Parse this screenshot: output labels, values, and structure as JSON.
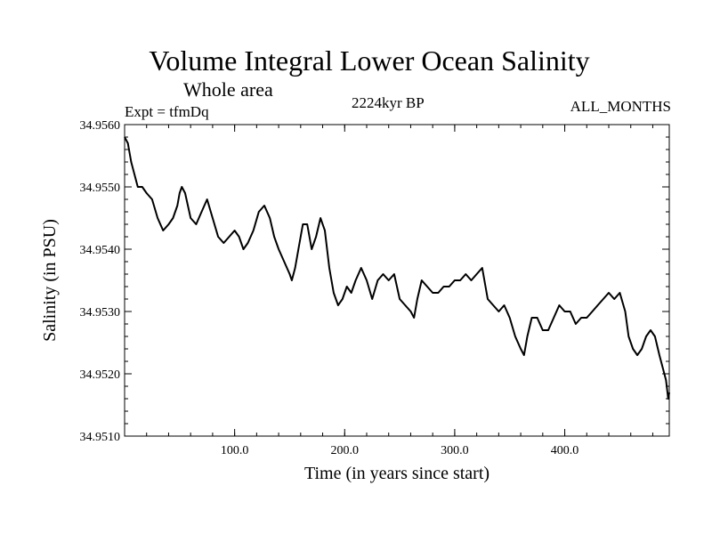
{
  "chart_data": {
    "type": "line",
    "title": "Volume Integral Lower Ocean Salinity",
    "subtitle": "Whole area",
    "experiment": "Expt = tfmDq",
    "period": "2224kyr BP",
    "months": "ALL_MONTHS",
    "xlabel": "Time (in years since start)",
    "ylabel": "Salinity (in PSU)",
    "xlim": [
      0,
      495
    ],
    "ylim": [
      34.951,
      34.956
    ],
    "xticks": [
      100,
      200,
      300,
      400
    ],
    "xtick_labels": [
      "100.0",
      "200.0",
      "300.0",
      "400.0"
    ],
    "yticks": [
      34.951,
      34.952,
      34.953,
      34.954,
      34.955,
      34.956
    ],
    "ytick_labels": [
      "34.9510",
      "34.9520",
      "34.9530",
      "34.9540",
      "34.9550",
      "34.9560"
    ],
    "series": [
      {
        "name": "salinity",
        "points": [
          [
            0,
            34.9558
          ],
          [
            3,
            34.9557
          ],
          [
            6,
            34.9554
          ],
          [
            9,
            34.9552
          ],
          [
            12,
            34.955
          ],
          [
            16,
            34.955
          ],
          [
            20,
            34.9549
          ],
          [
            25,
            34.9548
          ],
          [
            30,
            34.9545
          ],
          [
            35,
            34.9543
          ],
          [
            40,
            34.9544
          ],
          [
            44,
            34.9545
          ],
          [
            48,
            34.9547
          ],
          [
            50,
            34.9549
          ],
          [
            52,
            34.955
          ],
          [
            55,
            34.9549
          ],
          [
            60,
            34.9545
          ],
          [
            65,
            34.9544
          ],
          [
            70,
            34.9546
          ],
          [
            75,
            34.9548
          ],
          [
            80,
            34.9545
          ],
          [
            85,
            34.9542
          ],
          [
            90,
            34.9541
          ],
          [
            95,
            34.9542
          ],
          [
            100,
            34.9543
          ],
          [
            104,
            34.9542
          ],
          [
            108,
            34.954
          ],
          [
            112,
            34.9541
          ],
          [
            117,
            34.9543
          ],
          [
            122,
            34.9546
          ],
          [
            127,
            34.9547
          ],
          [
            132,
            34.9545
          ],
          [
            136,
            34.9542
          ],
          [
            140,
            34.954
          ],
          [
            145,
            34.9538
          ],
          [
            150,
            34.9536
          ],
          [
            152,
            34.9535
          ],
          [
            155,
            34.9537
          ],
          [
            158,
            34.954
          ],
          [
            162,
            34.9544
          ],
          [
            166,
            34.9544
          ],
          [
            170,
            34.954
          ],
          [
            174,
            34.9542
          ],
          [
            178,
            34.9545
          ],
          [
            182,
            34.9543
          ],
          [
            186,
            34.9537
          ],
          [
            190,
            34.9533
          ],
          [
            194,
            34.9531
          ],
          [
            198,
            34.9532
          ],
          [
            202,
            34.9534
          ],
          [
            206,
            34.9533
          ],
          [
            210,
            34.9535
          ],
          [
            215,
            34.9537
          ],
          [
            220,
            34.9535
          ],
          [
            225,
            34.9532
          ],
          [
            230,
            34.9535
          ],
          [
            235,
            34.9536
          ],
          [
            240,
            34.9535
          ],
          [
            245,
            34.9536
          ],
          [
            250,
            34.9532
          ],
          [
            255,
            34.9531
          ],
          [
            260,
            34.953
          ],
          [
            263,
            34.9529
          ],
          [
            266,
            34.9532
          ],
          [
            270,
            34.9535
          ],
          [
            275,
            34.9534
          ],
          [
            280,
            34.9533
          ],
          [
            285,
            34.9533
          ],
          [
            290,
            34.9534
          ],
          [
            295,
            34.9534
          ],
          [
            300,
            34.9535
          ],
          [
            305,
            34.9535
          ],
          [
            310,
            34.9536
          ],
          [
            315,
            34.9535
          ],
          [
            320,
            34.9536
          ],
          [
            325,
            34.9537
          ],
          [
            330,
            34.9532
          ],
          [
            335,
            34.9531
          ],
          [
            340,
            34.953
          ],
          [
            345,
            34.9531
          ],
          [
            350,
            34.9529
          ],
          [
            355,
            34.9526
          ],
          [
            360,
            34.9524
          ],
          [
            363,
            34.9523
          ],
          [
            366,
            34.9526
          ],
          [
            370,
            34.9529
          ],
          [
            375,
            34.9529
          ],
          [
            380,
            34.9527
          ],
          [
            385,
            34.9527
          ],
          [
            390,
            34.9529
          ],
          [
            395,
            34.9531
          ],
          [
            400,
            34.953
          ],
          [
            405,
            34.953
          ],
          [
            410,
            34.9528
          ],
          [
            415,
            34.9529
          ],
          [
            420,
            34.9529
          ],
          [
            425,
            34.953
          ],
          [
            430,
            34.9531
          ],
          [
            435,
            34.9532
          ],
          [
            440,
            34.9533
          ],
          [
            445,
            34.9532
          ],
          [
            450,
            34.9533
          ],
          [
            455,
            34.953
          ],
          [
            458,
            34.9526
          ],
          [
            462,
            34.9524
          ],
          [
            466,
            34.9523
          ],
          [
            470,
            34.9524
          ],
          [
            474,
            34.9526
          ],
          [
            478,
            34.9527
          ],
          [
            482,
            34.9526
          ],
          [
            486,
            34.9523
          ],
          [
            489,
            34.9521
          ],
          [
            492,
            34.9519
          ],
          [
            494,
            34.9516
          ],
          [
            495,
            34.9517
          ]
        ]
      }
    ]
  }
}
